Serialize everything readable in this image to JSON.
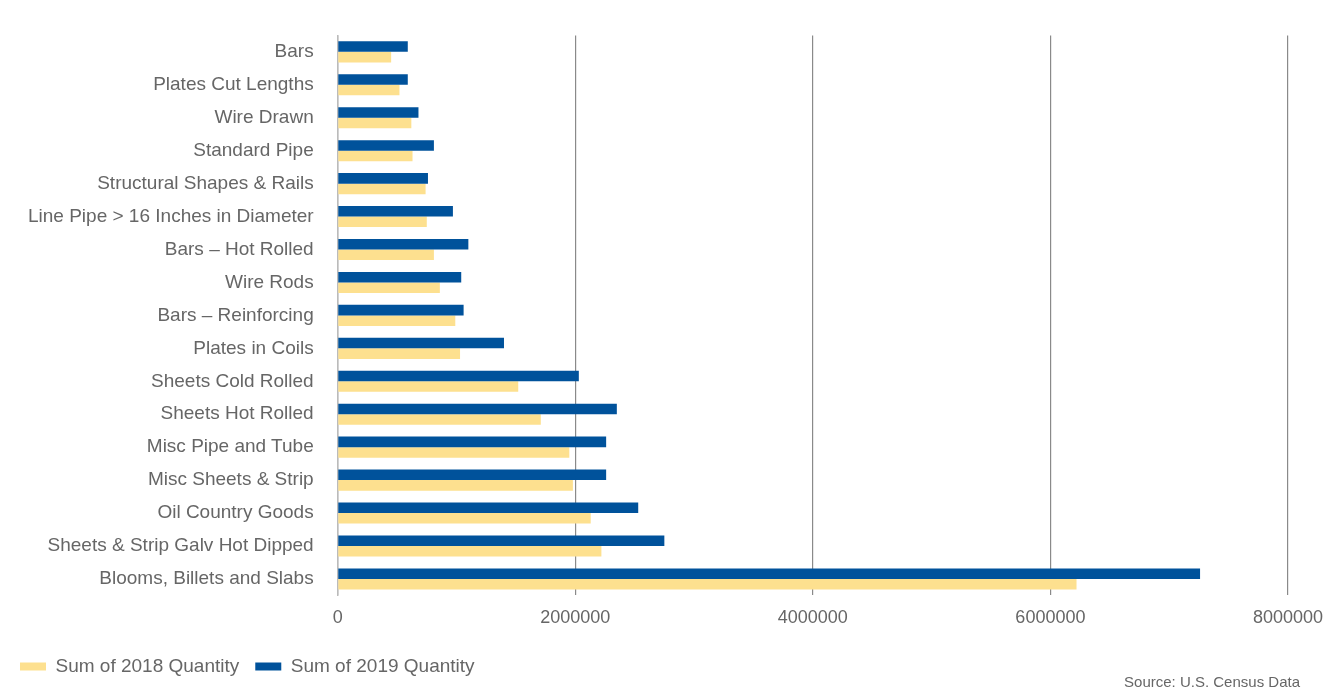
{
  "chart_data": {
    "type": "bar",
    "orientation": "horizontal",
    "categories": [
      "Bars",
      "Plates Cut Lengths",
      "Wire Drawn",
      "Standard Pipe",
      "Structural Shapes & Rails",
      "Line Pipe > 16 Inches in Diameter",
      "Bars – Hot Rolled",
      "Wire Rods",
      "Bars – Reinforcing",
      "Plates in Coils",
      "Sheets Cold Rolled",
      "Sheets Hot Rolled",
      "Misc Pipe and Tube",
      "Misc Sheets & Strip",
      "Oil Country Goods",
      "Sheets & Strip Galv Hot Dipped",
      "Blooms, Billets and Slabs"
    ],
    "series": [
      {
        "name": "Sum of 2019 Quantity",
        "color": "#00529b",
        "values": [
          590000,
          590000,
          680000,
          810000,
          760000,
          970000,
          1100000,
          1040000,
          1060000,
          1400000,
          2030000,
          2350000,
          2260000,
          2260000,
          2530000,
          2750000,
          7260000
        ]
      },
      {
        "name": "Sum of 2018 Quantity",
        "color": "#fde08f",
        "values": [
          450000,
          520000,
          620000,
          630000,
          740000,
          750000,
          810000,
          860000,
          990000,
          1030000,
          1520000,
          1710000,
          1950000,
          1980000,
          2130000,
          2220000,
          6220000
        ]
      }
    ],
    "xlim": [
      0,
      8000000
    ],
    "xticks": [
      0,
      2000000,
      4000000,
      6000000,
      8000000
    ],
    "grid": "x",
    "legend": "bottom left",
    "annotations": [
      "Source: U.S. Census Data"
    ]
  }
}
